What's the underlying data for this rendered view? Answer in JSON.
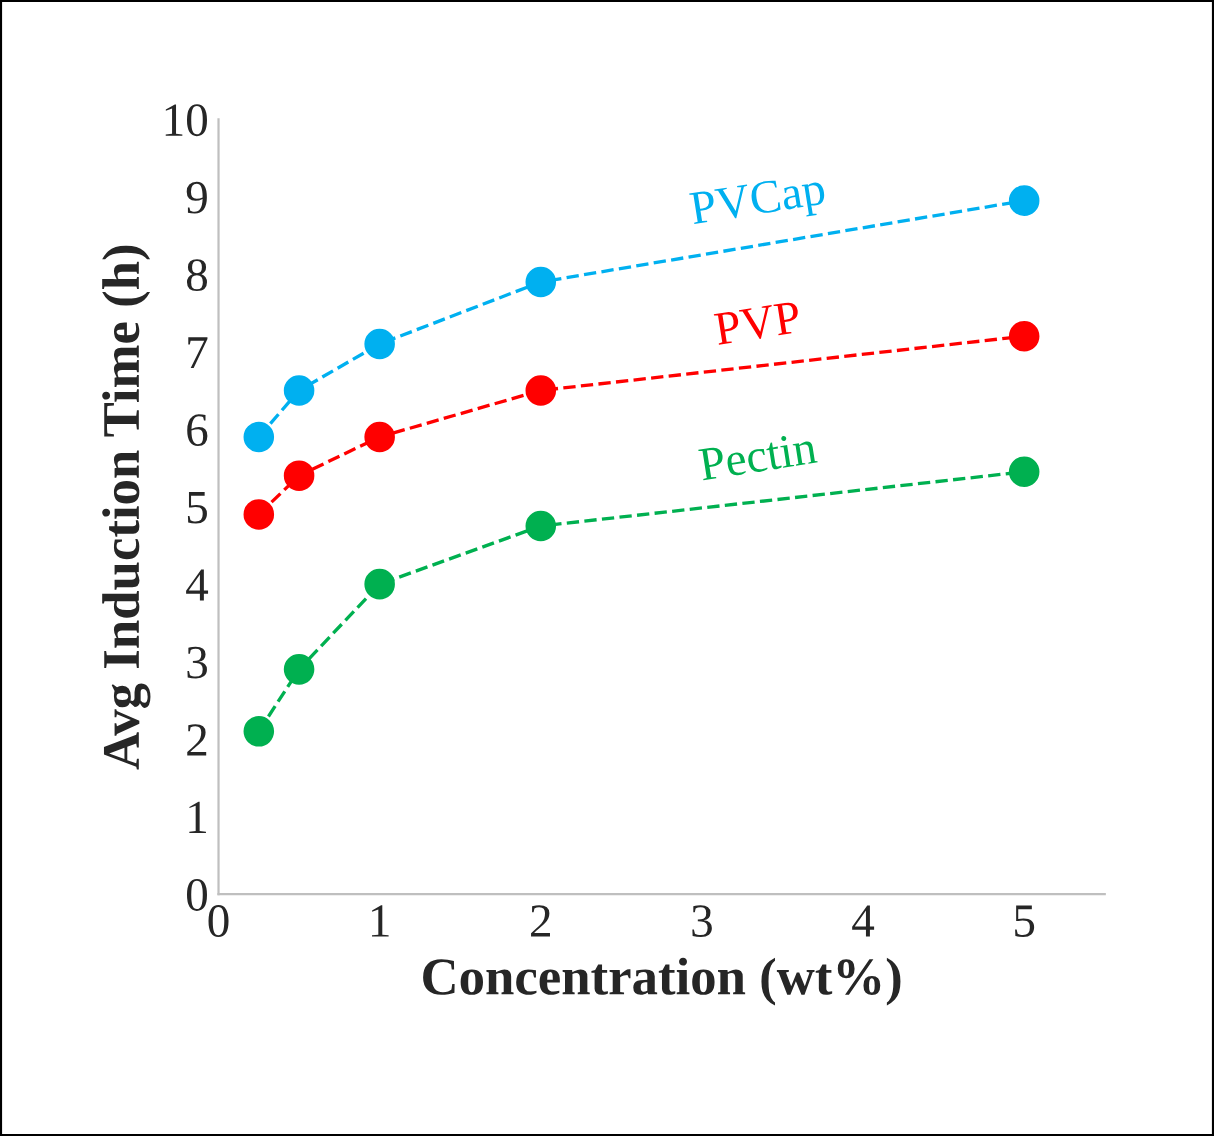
{
  "chart_data": {
    "type": "line",
    "xlabel": "Concentration (wt%)",
    "ylabel": "Avg Induction Time (h)",
    "x": [
      0.25,
      0.5,
      1,
      2,
      5
    ],
    "series": [
      {
        "name": "PVCap",
        "color": "#00b0f0",
        "values": [
          5.9,
          6.5,
          7.1,
          7.9,
          8.95
        ]
      },
      {
        "name": "PVP",
        "color": "#ff0000",
        "values": [
          4.9,
          5.4,
          5.9,
          6.5,
          7.2
        ]
      },
      {
        "name": "Pectin",
        "color": "#00b050",
        "values": [
          2.1,
          2.9,
          4.0,
          4.75,
          5.45
        ]
      }
    ],
    "xlim": [
      0,
      5.5
    ],
    "xticks": [
      0,
      1,
      2,
      3,
      4,
      5
    ],
    "ylim": [
      0,
      10
    ],
    "yticks": [
      0,
      1,
      2,
      3,
      4,
      5,
      6,
      7,
      8,
      9,
      10
    ],
    "grid": false,
    "legend": false,
    "marker": "circle",
    "line_style": "dashed"
  }
}
